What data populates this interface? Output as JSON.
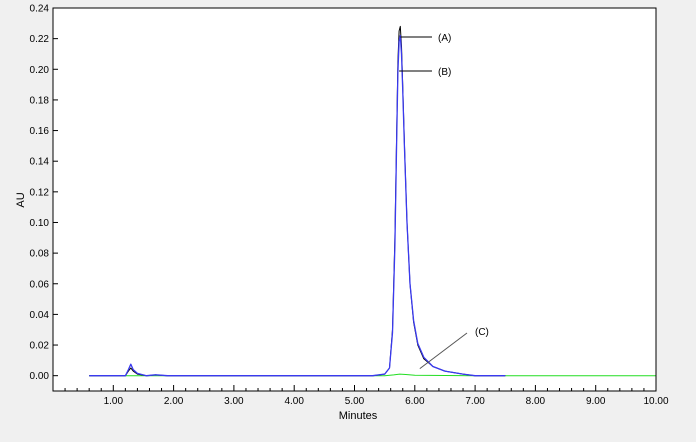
{
  "chart_data": {
    "type": "line",
    "title": "",
    "xlabel": "Minutes",
    "ylabel": "AU",
    "xlim": [
      0.0,
      10.0
    ],
    "ylim": [
      -0.01,
      0.24
    ],
    "x_ticks": [
      1.0,
      2.0,
      3.0,
      4.0,
      5.0,
      6.0,
      7.0,
      8.0,
      9.0,
      10.0
    ],
    "x_tick_labels": [
      "1.00",
      "2.00",
      "3.00",
      "4.00",
      "5.00",
      "6.00",
      "7.00",
      "8.00",
      "9.00",
      "10.00"
    ],
    "y_ticks": [
      0.0,
      0.02,
      0.04,
      0.06,
      0.08,
      0.1,
      0.12,
      0.14,
      0.16,
      0.18,
      0.2,
      0.22,
      0.24
    ],
    "y_tick_labels": [
      "0.00",
      "0.02",
      "0.04",
      "0.06",
      "0.08",
      "0.10",
      "0.12",
      "0.14",
      "0.16",
      "0.18",
      "0.20",
      "0.22",
      "0.24"
    ],
    "grid": false,
    "series": [
      {
        "color": "#000000",
        "x": [
          0.6,
          1.2,
          1.25,
          1.29,
          1.33,
          1.4,
          1.55,
          1.7,
          1.9,
          2.5,
          3.5,
          4.5,
          5.3,
          5.5,
          5.58,
          5.63,
          5.67,
          5.7,
          5.72,
          5.74,
          5.76,
          5.78,
          5.8,
          5.83,
          5.87,
          5.92,
          5.98,
          6.05,
          6.15,
          6.3,
          6.5,
          6.8,
          7.0,
          7.5
        ],
        "y": [
          0.0,
          0.0,
          0.003,
          0.005,
          0.003,
          0.001,
          0.0,
          0.0005,
          0.0,
          0.0,
          0.0,
          0.0,
          0.0,
          0.001,
          0.005,
          0.03,
          0.09,
          0.16,
          0.205,
          0.225,
          0.228,
          0.215,
          0.19,
          0.15,
          0.1,
          0.06,
          0.035,
          0.02,
          0.011,
          0.006,
          0.003,
          0.001,
          0.0,
          0.0
        ]
      },
      {
        "color": "#3a3af0",
        "x": [
          0.6,
          1.2,
          1.25,
          1.29,
          1.33,
          1.4,
          1.55,
          1.7,
          1.9,
          2.5,
          3.5,
          4.5,
          5.3,
          5.5,
          5.58,
          5.63,
          5.67,
          5.7,
          5.72,
          5.74,
          5.76,
          5.78,
          5.8,
          5.83,
          5.87,
          5.92,
          5.98,
          6.05,
          6.15,
          6.3,
          6.5,
          6.8,
          7.0,
          7.5
        ],
        "y": [
          0.0,
          0.0,
          0.004,
          0.0075,
          0.004,
          0.0015,
          0.0,
          0.0006,
          0.0,
          0.0,
          0.0,
          0.0,
          0.0,
          0.001,
          0.005,
          0.028,
          0.085,
          0.155,
          0.198,
          0.218,
          0.222,
          0.21,
          0.187,
          0.148,
          0.1,
          0.06,
          0.036,
          0.021,
          0.012,
          0.006,
          0.003,
          0.001,
          0.0,
          0.0
        ]
      },
      {
        "color": "#22dd22",
        "x": [
          0.6,
          1.3,
          2.0,
          3.0,
          4.0,
          5.0,
          5.5,
          5.65,
          5.75,
          5.85,
          6.0,
          7.0,
          8.0,
          9.0,
          10.0
        ],
        "y": [
          0.0,
          0.0,
          0.0,
          0.0,
          0.0,
          0.0,
          0.0,
          0.0005,
          0.001,
          0.0008,
          0.0003,
          0.0,
          0.0,
          0.0,
          0.0
        ]
      }
    ],
    "annotations": [
      {
        "label": "(A)",
        "x": 5.76,
        "y": 0.224
      },
      {
        "label": "(B)",
        "x": 5.74,
        "y": 0.2
      },
      {
        "label": "(C)",
        "x": 6.05,
        "y": 0.002
      }
    ]
  }
}
